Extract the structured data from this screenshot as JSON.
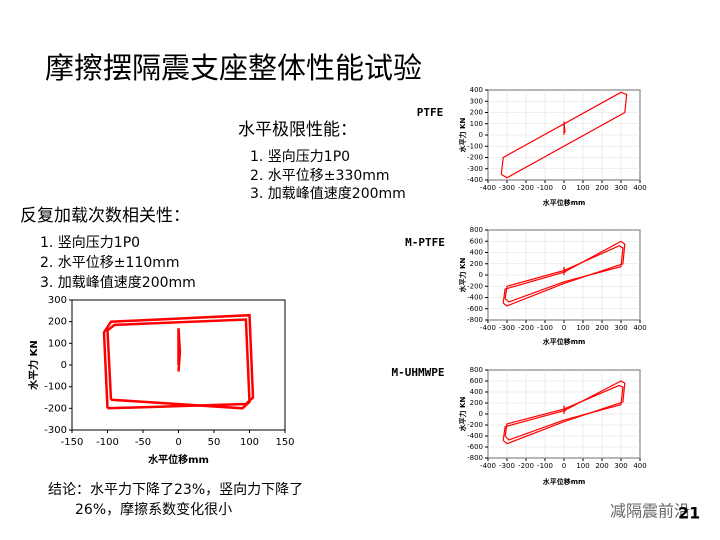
{
  "title": "摩擦摆隔震支座整体性能试验",
  "sections": [
    {
      "heading": "水平极限性能：",
      "items": [
        "1.  竖向压力1P0",
        "2.  水平位移±330mm",
        "3.  加载峰值速度200mm"
      ]
    },
    {
      "heading": "反复加载次数相关性：",
      "items": [
        "1.  竖向压力1P0",
        "2.  水平位移±110mm",
        "3.  加载峰值速度200mm"
      ]
    }
  ],
  "conclusion": [
    "结论：水平力下降了23%，竖向力下降了",
    "26%，摩擦系数变化很小"
  ],
  "footer": {
    "watermark": "减隔震前沿",
    "page": "21"
  },
  "chart_data": [
    {
      "type": "line",
      "x_label": "水平位移mm",
      "y_label": "水平力 KN",
      "grid": false,
      "xlim": [
        -150,
        150
      ],
      "xticks": [
        -150,
        -100,
        -50,
        0,
        50,
        100,
        150
      ],
      "ylim": [
        -300,
        300
      ],
      "yticks": [
        -300,
        -200,
        -100,
        0,
        100,
        200,
        300
      ],
      "series": [
        {
          "color": "#ff0000",
          "x": [
            -100,
            -105,
            -95,
            100,
            105,
            95,
            -100
          ],
          "y": [
            -200,
            150,
            200,
            230,
            -150,
            -180,
            -200
          ]
        },
        {
          "color": "#ff0000",
          "x": [
            -95,
            -100,
            -90,
            95,
            100,
            90,
            -95
          ],
          "y": [
            -160,
            160,
            185,
            210,
            -170,
            -200,
            -160
          ]
        },
        {
          "color": "#ff0000",
          "x": [
            0,
            0,
            2,
            0
          ],
          "y": [
            0,
            170,
            60,
            -30
          ]
        }
      ]
    },
    {
      "type": "line",
      "title": "PTFE",
      "x_label": "水平位移mm",
      "y_label": "水平力 KN",
      "grid": true,
      "xlim": [
        -400,
        400
      ],
      "xticks": [
        -400,
        -300,
        -200,
        -100,
        0,
        100,
        200,
        300,
        400
      ],
      "ylim": [
        -400,
        400
      ],
      "yticks": [
        -400,
        -300,
        -200,
        -100,
        0,
        100,
        200,
        300,
        400
      ],
      "series": [
        {
          "color": "#ff0000",
          "x": [
            -330,
            -320,
            300,
            330,
            320,
            -300,
            -330
          ],
          "y": [
            -350,
            -200,
            380,
            360,
            200,
            -380,
            -350
          ]
        },
        {
          "color": "#ff0000",
          "x": [
            0,
            0,
            5
          ],
          "y": [
            0,
            120,
            20
          ]
        }
      ]
    },
    {
      "type": "line",
      "title": "M-PTFE",
      "x_label": "水平位移mm",
      "y_label": "水平力 KN",
      "grid": true,
      "xlim": [
        -400,
        400
      ],
      "xticks": [
        -400,
        -300,
        -200,
        -100,
        0,
        100,
        200,
        300,
        400
      ],
      "ylim": [
        -800,
        800
      ],
      "yticks": [
        -800,
        -600,
        -400,
        -200,
        0,
        200,
        400,
        600,
        800
      ],
      "series": [
        {
          "color": "#ff0000",
          "x": [
            -320,
            -310,
            0,
            300,
            320,
            310,
            0,
            -300,
            -320
          ],
          "y": [
            -500,
            -250,
            50,
            600,
            550,
            200,
            -150,
            -550,
            -500
          ]
        },
        {
          "color": "#ff0000",
          "x": [
            -310,
            -300,
            0,
            290,
            310,
            300,
            0,
            -290,
            -310
          ],
          "y": [
            -420,
            -200,
            80,
            520,
            480,
            150,
            -120,
            -480,
            -420
          ]
        },
        {
          "color": "#ff0000",
          "x": [
            0,
            0,
            5
          ],
          "y": [
            0,
            140,
            40
          ]
        }
      ]
    },
    {
      "type": "line",
      "title": "M-UHMWPE",
      "x_label": "水平位移mm",
      "y_label": "水平力 KN",
      "grid": true,
      "xlim": [
        -400,
        400
      ],
      "xticks": [
        -400,
        -300,
        -200,
        -100,
        0,
        100,
        200,
        300,
        400
      ],
      "ylim": [
        -800,
        800
      ],
      "yticks": [
        -800,
        -600,
        -400,
        -200,
        0,
        200,
        400,
        600,
        800
      ],
      "series": [
        {
          "color": "#ff0000",
          "x": [
            -320,
            -310,
            0,
            300,
            320,
            310,
            0,
            -300,
            -320
          ],
          "y": [
            -480,
            -230,
            60,
            600,
            560,
            220,
            -140,
            -540,
            -480
          ]
        },
        {
          "color": "#ff0000",
          "x": [
            -310,
            -300,
            0,
            290,
            310,
            300,
            0,
            -290,
            -310
          ],
          "y": [
            -400,
            -180,
            90,
            520,
            490,
            170,
            -110,
            -470,
            -400
          ]
        },
        {
          "color": "#ff0000",
          "x": [
            0,
            0,
            5
          ],
          "y": [
            0,
            150,
            40
          ]
        }
      ]
    }
  ]
}
